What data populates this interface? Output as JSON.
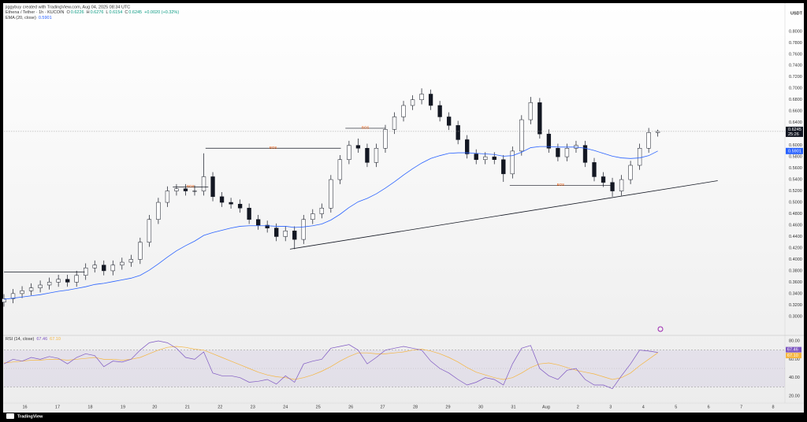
{
  "chart_data": {
    "type": "candlestick",
    "attribution": "jiggybuy created with TradingView.com, Aug 04, 2025 08:34 UTC",
    "symbol": "Ethena / Tether · 1h · KUCOIN",
    "ohlc_labels": [
      "O",
      "H",
      "L",
      "C"
    ],
    "change": "+0.0020 (+0.32%)",
    "currency": "USDT",
    "countdown": "25:26",
    "footer": "TradingView",
    "up_color": "#ffffff",
    "down_color": "#131722",
    "xlim": [
      0,
      86
    ],
    "ylim": [
      0.268,
      0.844
    ],
    "xticks": [
      {
        "value": 2.3,
        "label": "16"
      },
      {
        "value": 5.9,
        "label": "17"
      },
      {
        "value": 9.5,
        "label": "18"
      },
      {
        "value": 13.1,
        "label": "19"
      },
      {
        "value": 16.6,
        "label": "20"
      },
      {
        "value": 20.2,
        "label": "21"
      },
      {
        "value": 23.8,
        "label": "22"
      },
      {
        "value": 27.4,
        "label": "23"
      },
      {
        "value": 31.0,
        "label": "24"
      },
      {
        "value": 34.6,
        "label": "25"
      },
      {
        "value": 38.2,
        "label": "26"
      },
      {
        "value": 41.7,
        "label": "27"
      },
      {
        "value": 45.3,
        "label": "28"
      },
      {
        "value": 48.9,
        "label": "29"
      },
      {
        "value": 52.5,
        "label": "30"
      },
      {
        "value": 56.1,
        "label": "31"
      },
      {
        "value": 59.7,
        "label": "Aug"
      },
      {
        "value": 63.2,
        "label": "2"
      },
      {
        "value": 66.8,
        "label": "3"
      },
      {
        "value": 70.4,
        "label": "4"
      },
      {
        "value": 74.0,
        "label": "5"
      },
      {
        "value": 77.6,
        "label": "6"
      },
      {
        "value": 81.2,
        "label": "7"
      },
      {
        "value": 84.7,
        "label": "8"
      }
    ],
    "yticks": [
      {
        "value": 0.3,
        "label": "0.3000"
      },
      {
        "value": 0.32,
        "label": "0.3200"
      },
      {
        "value": 0.34,
        "label": "0.3400"
      },
      {
        "value": 0.36,
        "label": "0.3600"
      },
      {
        "value": 0.38,
        "label": "0.3800"
      },
      {
        "value": 0.4,
        "label": "0.4000"
      },
      {
        "value": 0.42,
        "label": "0.4200"
      },
      {
        "value": 0.44,
        "label": "0.4400"
      },
      {
        "value": 0.46,
        "label": "0.4600"
      },
      {
        "value": 0.48,
        "label": "0.4800"
      },
      {
        "value": 0.5,
        "label": "0.5000"
      },
      {
        "value": 0.52,
        "label": "0.5200"
      },
      {
        "value": 0.54,
        "label": "0.5400"
      },
      {
        "value": 0.56,
        "label": "0.5600"
      },
      {
        "value": 0.58,
        "label": "0.5800"
      },
      {
        "value": 0.6,
        "label": "0.6000"
      },
      {
        "value": 0.64,
        "label": "0.6400"
      },
      {
        "value": 0.66,
        "label": "0.6600"
      },
      {
        "value": 0.68,
        "label": "0.6800"
      },
      {
        "value": 0.7,
        "label": "0.7000"
      },
      {
        "value": 0.72,
        "label": "0.7200"
      },
      {
        "value": 0.74,
        "label": "0.7400"
      },
      {
        "value": 0.76,
        "label": "0.7600"
      },
      {
        "value": 0.78,
        "label": "0.7800"
      },
      {
        "value": 0.8,
        "label": "0.8000"
      }
    ],
    "candles": {
      "open": [
        0.325,
        0.331,
        0.34,
        0.345,
        0.35,
        0.355,
        0.36,
        0.365,
        0.36,
        0.372,
        0.385,
        0.39,
        0.38,
        0.39,
        0.395,
        0.4,
        0.43,
        0.47,
        0.5,
        0.52,
        0.524,
        0.52,
        0.52,
        0.545,
        0.51,
        0.5,
        0.497,
        0.49,
        0.47,
        0.46,
        0.455,
        0.44,
        0.45,
        0.435,
        0.47,
        0.48,
        0.49,
        0.54,
        0.575,
        0.6,
        0.595,
        0.57,
        0.595,
        0.628,
        0.65,
        0.67,
        0.68,
        0.69,
        0.67,
        0.65,
        0.635,
        0.61,
        0.585,
        0.575,
        0.58,
        0.575,
        0.55,
        0.59,
        0.645,
        0.675,
        0.62,
        0.595,
        0.58,
        0.595,
        0.6,
        0.57,
        0.545,
        0.535,
        0.52,
        0.54,
        0.565,
        0.595,
        0.6226
      ],
      "high": [
        0.339,
        0.348,
        0.353,
        0.358,
        0.363,
        0.368,
        0.373,
        0.373,
        0.38,
        0.393,
        0.398,
        0.398,
        0.398,
        0.403,
        0.408,
        0.438,
        0.478,
        0.508,
        0.528,
        0.532,
        0.532,
        0.53,
        0.586,
        0.553,
        0.518,
        0.508,
        0.505,
        0.498,
        0.478,
        0.468,
        0.463,
        0.458,
        0.458,
        0.478,
        0.488,
        0.498,
        0.548,
        0.583,
        0.608,
        0.612,
        0.603,
        0.603,
        0.636,
        0.658,
        0.678,
        0.688,
        0.7,
        0.698,
        0.678,
        0.658,
        0.643,
        0.618,
        0.593,
        0.588,
        0.588,
        0.583,
        0.598,
        0.653,
        0.685,
        0.683,
        0.628,
        0.603,
        0.603,
        0.608,
        0.608,
        0.578,
        0.553,
        0.543,
        0.548,
        0.573,
        0.603,
        0.6306,
        0.6276
      ],
      "low": [
        0.317,
        0.323,
        0.332,
        0.337,
        0.342,
        0.347,
        0.352,
        0.352,
        0.352,
        0.364,
        0.377,
        0.372,
        0.372,
        0.382,
        0.387,
        0.392,
        0.422,
        0.462,
        0.492,
        0.512,
        0.512,
        0.512,
        0.512,
        0.502,
        0.492,
        0.489,
        0.482,
        0.462,
        0.452,
        0.447,
        0.432,
        0.432,
        0.418,
        0.427,
        0.462,
        0.472,
        0.482,
        0.532,
        0.567,
        0.587,
        0.562,
        0.562,
        0.587,
        0.62,
        0.642,
        0.662,
        0.672,
        0.662,
        0.642,
        0.627,
        0.602,
        0.577,
        0.567,
        0.567,
        0.567,
        0.536,
        0.542,
        0.582,
        0.637,
        0.612,
        0.587,
        0.572,
        0.572,
        0.587,
        0.562,
        0.537,
        0.527,
        0.51,
        0.512,
        0.532,
        0.557,
        0.587,
        0.6154
      ],
      "close": [
        0.331,
        0.34,
        0.345,
        0.35,
        0.355,
        0.36,
        0.365,
        0.36,
        0.372,
        0.385,
        0.39,
        0.38,
        0.39,
        0.395,
        0.4,
        0.43,
        0.47,
        0.5,
        0.52,
        0.524,
        0.52,
        0.52,
        0.545,
        0.51,
        0.5,
        0.497,
        0.49,
        0.47,
        0.46,
        0.455,
        0.44,
        0.45,
        0.435,
        0.47,
        0.48,
        0.49,
        0.54,
        0.575,
        0.6,
        0.595,
        0.57,
        0.595,
        0.628,
        0.65,
        0.67,
        0.68,
        0.69,
        0.67,
        0.65,
        0.635,
        0.61,
        0.585,
        0.575,
        0.58,
        0.575,
        0.55,
        0.59,
        0.645,
        0.675,
        0.62,
        0.595,
        0.58,
        0.595,
        0.6,
        0.57,
        0.545,
        0.535,
        0.52,
        0.54,
        0.565,
        0.595,
        0.6226,
        0.6245
      ]
    },
    "ema": {
      "name": "EMA (20, close)",
      "color": "#2962ff",
      "values": [
        0.33,
        0.332,
        0.334,
        0.336,
        0.338,
        0.341,
        0.344,
        0.346,
        0.349,
        0.352,
        0.356,
        0.358,
        0.361,
        0.364,
        0.367,
        0.372,
        0.381,
        0.392,
        0.404,
        0.415,
        0.424,
        0.432,
        0.442,
        0.447,
        0.451,
        0.455,
        0.458,
        0.459,
        0.459,
        0.459,
        0.458,
        0.458,
        0.456,
        0.457,
        0.459,
        0.462,
        0.469,
        0.479,
        0.491,
        0.501,
        0.507,
        0.515,
        0.525,
        0.536,
        0.548,
        0.559,
        0.569,
        0.577,
        0.582,
        0.586,
        0.587,
        0.587,
        0.586,
        0.585,
        0.584,
        0.581,
        0.582,
        0.588,
        0.596,
        0.598,
        0.598,
        0.597,
        0.597,
        0.597,
        0.595,
        0.591,
        0.586,
        0.581,
        0.578,
        0.577,
        0.578,
        0.582,
        0.5901
      ]
    },
    "levels": [
      {
        "x": [
          0,
          8.9
        ],
        "y": 0.378
      },
      {
        "x": [
          18.6,
          22.5
        ],
        "y": 0.527,
        "label": "BOS"
      },
      {
        "x": [
          22.2,
          37.1
        ],
        "y": 0.595,
        "label": "BOS"
      },
      {
        "x": [
          37.6,
          42
        ],
        "y": 0.63,
        "label": "BOS"
      },
      {
        "x": [
          55.7,
          66.9
        ],
        "y": 0.53,
        "label": "BOS"
      }
    ],
    "trendline": {
      "x": [
        31.5,
        78.6
      ],
      "y": [
        0.418,
        0.538
      ]
    },
    "rsi": {
      "title": "RSI (14, close)",
      "ylim": [
        15.7,
        84.3
      ],
      "yticks": [
        {
          "value": 80,
          "label": "80.00"
        },
        {
          "value": 60,
          "label": "60.00"
        },
        {
          "value": 40,
          "label": "40.00"
        },
        {
          "value": 20,
          "label": "20.00"
        }
      ],
      "bands": [
        30,
        70
      ],
      "middle": 50,
      "series": [
        {
          "name": "RSI",
          "color": "#7e57c2",
          "values": [
            55,
            60,
            58,
            62,
            60,
            63,
            61,
            55,
            62,
            66,
            64,
            52,
            58,
            57,
            60,
            70,
            78,
            80,
            78,
            72,
            62,
            60,
            68,
            45,
            42,
            42,
            40,
            35,
            36,
            38,
            33,
            42,
            35,
            55,
            58,
            60,
            72,
            74,
            76,
            70,
            55,
            62,
            70,
            72,
            74,
            72,
            70,
            58,
            50,
            45,
            38,
            32,
            35,
            40,
            38,
            32,
            55,
            72,
            75,
            50,
            42,
            38,
            48,
            50,
            38,
            32,
            32,
            28,
            42,
            55,
            70,
            69,
            67.46
          ]
        },
        {
          "name": "RSI-based MA",
          "color": "#f5b642",
          "values": [
            56,
            57,
            58,
            59,
            59,
            60,
            60,
            59,
            60,
            61,
            62,
            60,
            60,
            59,
            60,
            62,
            66,
            70,
            73,
            74,
            73,
            71,
            70,
            66,
            62,
            58,
            54,
            50,
            46,
            43,
            41,
            40,
            38,
            40,
            43,
            47,
            52,
            58,
            63,
            67,
            67,
            66,
            66,
            67,
            68,
            70,
            71,
            69,
            66,
            62,
            57,
            51,
            46,
            43,
            40,
            38,
            40,
            45,
            51,
            55,
            56,
            54,
            51,
            48,
            46,
            44,
            41,
            38,
            40,
            45,
            53,
            60,
            67.1
          ],
          "value_labels": {
            "72": "67.10"
          }
        }
      ]
    }
  }
}
